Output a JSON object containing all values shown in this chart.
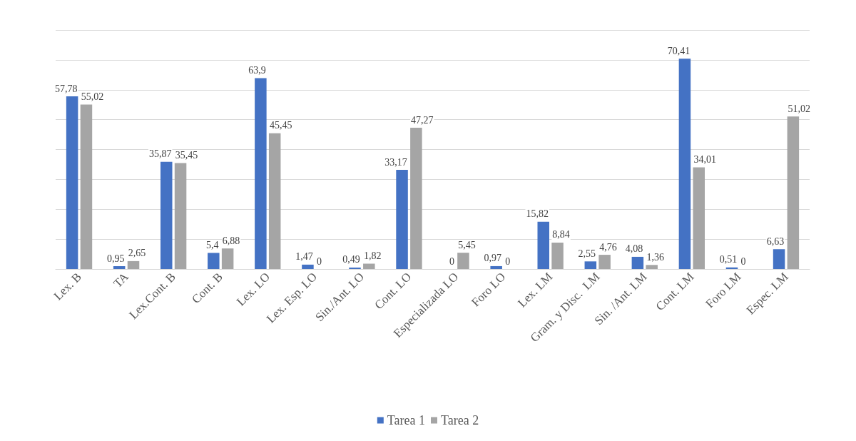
{
  "chart_data": {
    "type": "bar",
    "categories": [
      "Lex. B",
      "TA",
      "Lex.Cont. B",
      "Cont. B",
      "Lex. LO",
      "Lex. Esp. LO",
      "Sin./Ant. LO",
      "Cont. LO",
      "Especializada LO",
      "Foro LO",
      "Lex. LM",
      "Gram. y Disc.  LM",
      "Sin. /Ant. LM",
      "Cont. LM",
      "Foro LM",
      "Espec. LM"
    ],
    "series": [
      {
        "name": "Tarea 1",
        "color": "#4472c4",
        "values": [
          57.78,
          0.95,
          35.87,
          5.4,
          63.9,
          1.47,
          0.49,
          33.17,
          0,
          0.97,
          15.82,
          2.55,
          4.08,
          70.41,
          0.51,
          6.63
        ],
        "value_labels": [
          "57,78",
          "0,95",
          "35,87",
          "5,4",
          "63,9",
          "1,47",
          "0,49",
          "33,17",
          "0",
          "0,97",
          "15,82",
          "2,55",
          "4,08",
          "70,41",
          "0,51",
          "6,63"
        ]
      },
      {
        "name": "Tarea 2",
        "color": "#a5a5a5",
        "values": [
          55.02,
          2.65,
          35.45,
          6.88,
          45.45,
          0,
          1.82,
          47.27,
          5.45,
          0,
          8.84,
          4.76,
          1.36,
          34.01,
          0,
          51.02
        ],
        "value_labels": [
          "55,02",
          "2,65",
          "35,45",
          "6,88",
          "45,45",
          "0",
          "1,82",
          "47,27",
          "5,45",
          "0",
          "8,84",
          "4,76",
          "1,36",
          "34,01",
          "0",
          "51,02"
        ]
      }
    ],
    "ylim": [
      0,
      80
    ],
    "yticks": [
      {
        "value": 0,
        "label": null
      },
      {
        "value": 10,
        "label": null
      },
      {
        "value": 20,
        "label": null
      },
      {
        "value": 30,
        "label": null
      },
      {
        "value": 40,
        "label": null
      },
      {
        "value": 50,
        "label": null
      },
      {
        "value": 60,
        "label": null
      },
      {
        "value": 70,
        "label": null
      },
      {
        "value": 80,
        "label": null
      }
    ],
    "grid": "y",
    "legend": "bottom",
    "tick_labels": "x"
  }
}
